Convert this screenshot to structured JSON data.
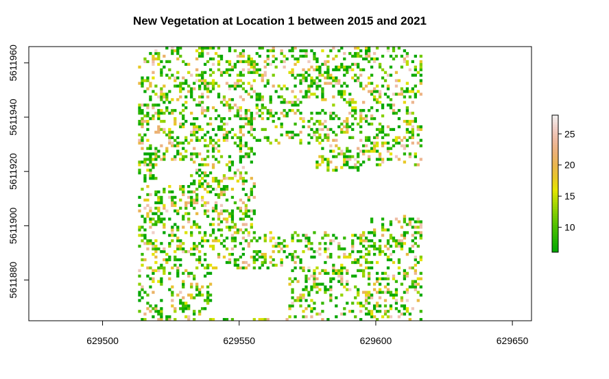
{
  "chart_data": {
    "type": "heatmap",
    "title": "New Vegetation at Location 1 between 2015 and 2021",
    "xlabel": "",
    "ylabel": "",
    "xlim": [
      629473,
      629657
    ],
    "ylim": [
      5611865,
      5611966
    ],
    "x_ticks": [
      629500,
      629550,
      629600,
      629650
    ],
    "x_tick_labels": [
      "629500",
      "629550",
      "629600",
      "629650"
    ],
    "y_ticks": [
      5611880,
      5611900,
      5611920,
      5611940,
      5611960
    ],
    "y_tick_labels": [
      "5611880",
      "5611900",
      "5611920",
      "5611940",
      "5611960"
    ],
    "raster_extent": {
      "xmin": 629513,
      "xmax": 629617,
      "ymin": 5611865,
      "ymax": 5611966
    },
    "cell_size": 1,
    "value_range": [
      6,
      28
    ],
    "legend": {
      "position": "right",
      "ticks": [
        10,
        15,
        20,
        25
      ],
      "tick_labels": [
        "10",
        "15",
        "20",
        "25"
      ],
      "colors": [
        "#00a600",
        "#24b300",
        "#4cbf00",
        "#7acc00",
        "#add900",
        "#e6e600",
        "#e8c727",
        "#eab64e",
        "#ecb176",
        "#eeb99f",
        "#f0cfc8",
        "#f2f2f2"
      ]
    },
    "empty_regions": [
      {
        "xmin": 629556,
        "xmax": 629578,
        "ymin": 5611898,
        "ymax": 5611930
      },
      {
        "xmin": 629540,
        "xmax": 629568,
        "ymin": 5611866,
        "ymax": 5611884
      },
      {
        "xmin": 629578,
        "xmax": 629598,
        "ymin": 5611898,
        "ymax": 5611920
      },
      {
        "xmin": 629520,
        "xmax": 629532,
        "ymin": 5611915,
        "ymax": 5611924
      },
      {
        "xmin": 629598,
        "xmax": 629617,
        "ymin": 5611904,
        "ymax": 5611922
      }
    ]
  }
}
